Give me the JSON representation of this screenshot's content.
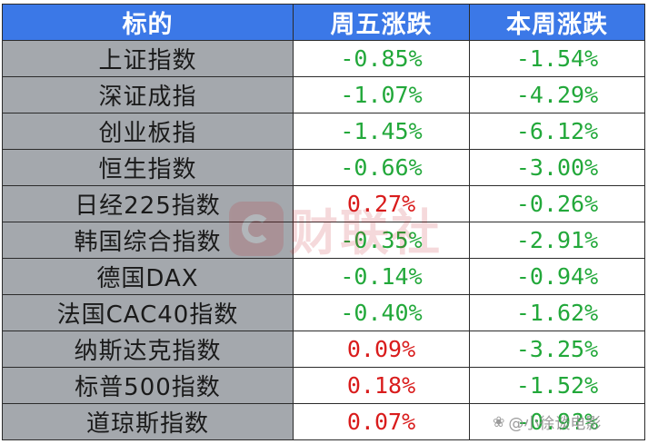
{
  "table": {
    "headers": [
      "标的",
      "周五涨跌",
      "本周涨跌"
    ],
    "rows": [
      {
        "name": "上证指数",
        "fri": "-0.85%",
        "fri_dir": "down",
        "week": "-1.54%",
        "week_dir": "down"
      },
      {
        "name": "深证成指",
        "fri": "-1.07%",
        "fri_dir": "down",
        "week": "-4.29%",
        "week_dir": "down"
      },
      {
        "name": "创业板指",
        "fri": "-1.45%",
        "fri_dir": "down",
        "week": "-6.12%",
        "week_dir": "down"
      },
      {
        "name": "恒生指数",
        "fri": "-0.66%",
        "fri_dir": "down",
        "week": "-3.00%",
        "week_dir": "down"
      },
      {
        "name": "日经225指数",
        "fri": "0.27%",
        "fri_dir": "up",
        "week": "-0.26%",
        "week_dir": "down"
      },
      {
        "name": "韩国综合指数",
        "fri": "-0.35%",
        "fri_dir": "down",
        "week": "-2.91%",
        "week_dir": "down"
      },
      {
        "name": "德国DAX",
        "fri": "-0.14%",
        "fri_dir": "down",
        "week": "-0.94%",
        "week_dir": "down"
      },
      {
        "name": "法国CAC40指数",
        "fri": "-0.40%",
        "fri_dir": "down",
        "week": "-1.62%",
        "week_dir": "down"
      },
      {
        "name": "纳斯达克指数",
        "fri": "0.09%",
        "fri_dir": "up",
        "week": "-3.25%",
        "week_dir": "down"
      },
      {
        "name": "标普500指数",
        "fri": "0.18%",
        "fri_dir": "up",
        "week": "-1.52%",
        "week_dir": "down"
      },
      {
        "name": "道琼斯指数",
        "fri": "0.07%",
        "fri_dir": "up",
        "week": "-0.9?%",
        "week_dir": "down"
      }
    ]
  },
  "colors": {
    "header_bg": "#3b78e7",
    "name_bg": "#a4a8ad",
    "down": "#22a83a",
    "up": "#d91c1c"
  },
  "watermark": {
    "text": "财联社"
  },
  "credit": {
    "text": "@小徐谈电影"
  }
}
